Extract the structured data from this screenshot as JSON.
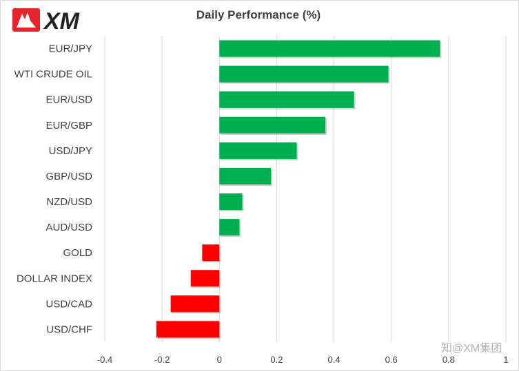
{
  "brand": {
    "name": "XM"
  },
  "watermark": "知@XM集团",
  "colors": {
    "positive": "#00b050",
    "negative": "#ff0000",
    "grid": "#d9d9d9",
    "text": "#404040",
    "brand_red": "#e5252b"
  },
  "chart_data": {
    "type": "bar",
    "orientation": "horizontal",
    "title": "Daily Performance  (%)",
    "xlabel": "",
    "ylabel": "",
    "categories": [
      "EUR/JPY",
      "WTI CRUDE OIL",
      "EUR/USD",
      "EUR/GBP",
      "USD/JPY",
      "GBP/USD",
      "NZD/USD",
      "AUD/USD",
      "GOLD",
      "DOLLAR INDEX",
      "USD/CAD",
      "USD/CHF"
    ],
    "values": [
      0.77,
      0.59,
      0.47,
      0.37,
      0.27,
      0.18,
      0.08,
      0.07,
      -0.06,
      -0.1,
      -0.17,
      -0.22
    ],
    "xlim": [
      -0.4,
      1
    ],
    "xticks": [
      "-0.4",
      "-0.2",
      "0",
      "0.2",
      "0.4",
      "0.6",
      "0.8",
      "1"
    ],
    "grid": true,
    "legend": "none"
  }
}
